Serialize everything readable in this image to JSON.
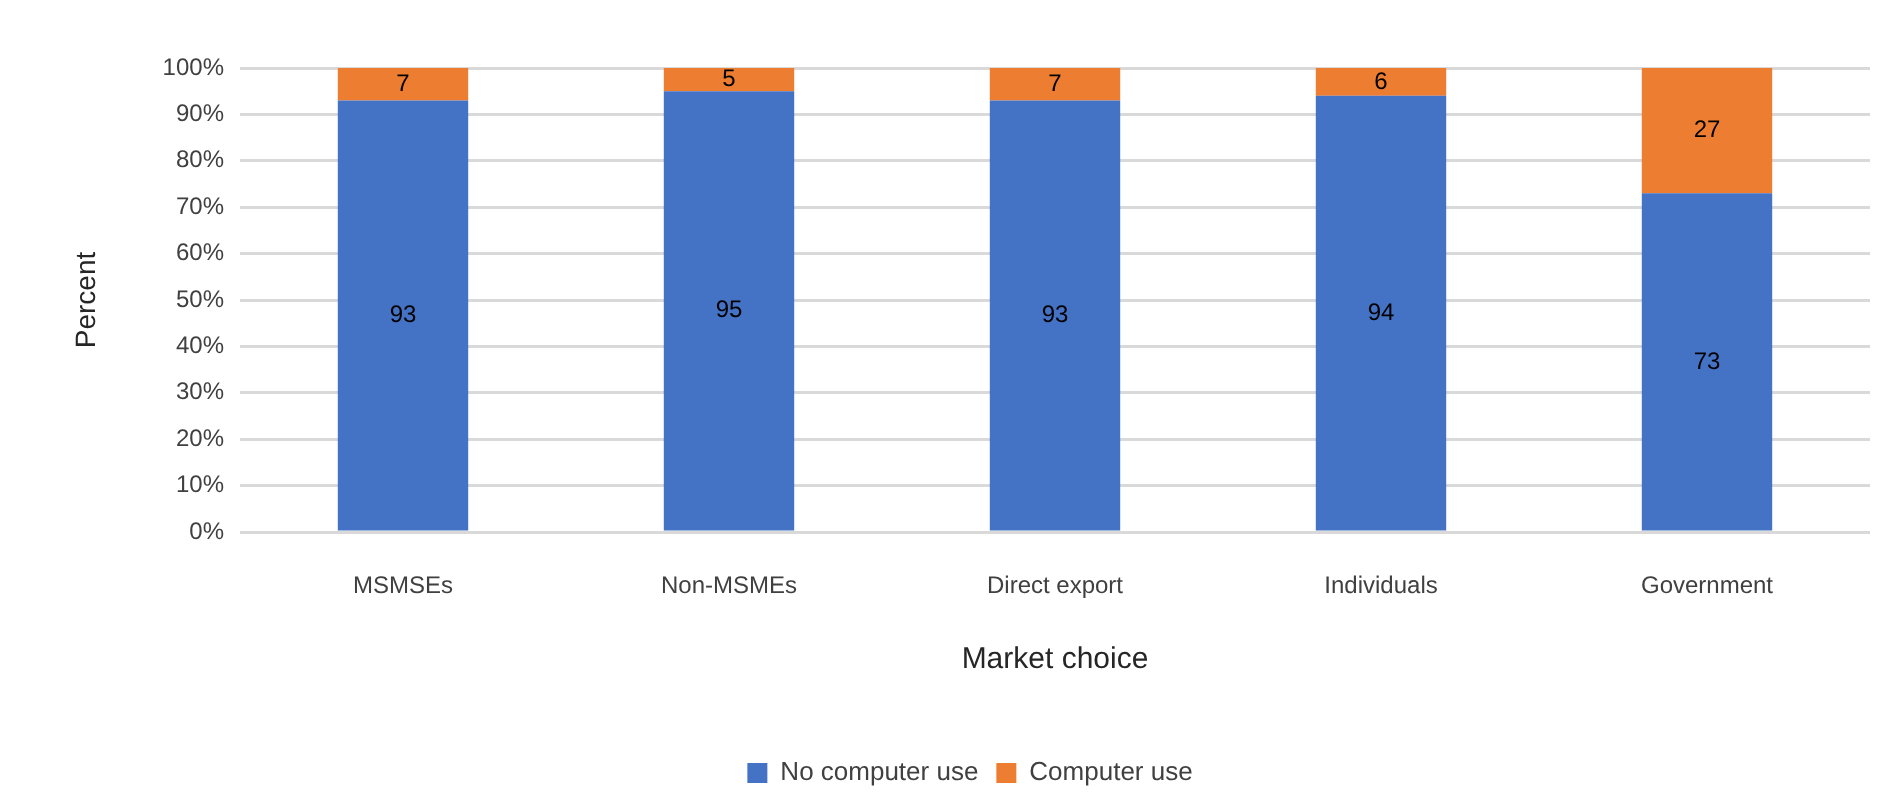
{
  "chart_data": {
    "type": "bar",
    "stacked": true,
    "xlabel": "Market choice",
    "ylabel": "Percent",
    "categories": [
      "MSMSEs",
      "Non-MSMEs",
      "Direct export",
      "Individuals",
      "Government"
    ],
    "series": [
      {
        "name": "No computer use",
        "color": "#4472c4",
        "values": [
          93,
          95,
          93,
          94,
          73
        ]
      },
      {
        "name": "Computer use",
        "color": "#ed7d31",
        "values": [
          7,
          5,
          7,
          6,
          27
        ]
      }
    ],
    "ylim": [
      0,
      100
    ],
    "yticks": [
      {
        "value": 0,
        "label": "0%"
      },
      {
        "value": 10,
        "label": "10%"
      },
      {
        "value": 20,
        "label": "20%"
      },
      {
        "value": 30,
        "label": "30%"
      },
      {
        "value": 40,
        "label": "40%"
      },
      {
        "value": 50,
        "label": "50%"
      },
      {
        "value": 60,
        "label": "60%"
      },
      {
        "value": 70,
        "label": "70%"
      },
      {
        "value": 80,
        "label": "80%"
      },
      {
        "value": 90,
        "label": "90%"
      },
      {
        "value": 100,
        "label": "100%"
      }
    ],
    "grid": "y",
    "legend": "bottom",
    "data_labels": true
  }
}
